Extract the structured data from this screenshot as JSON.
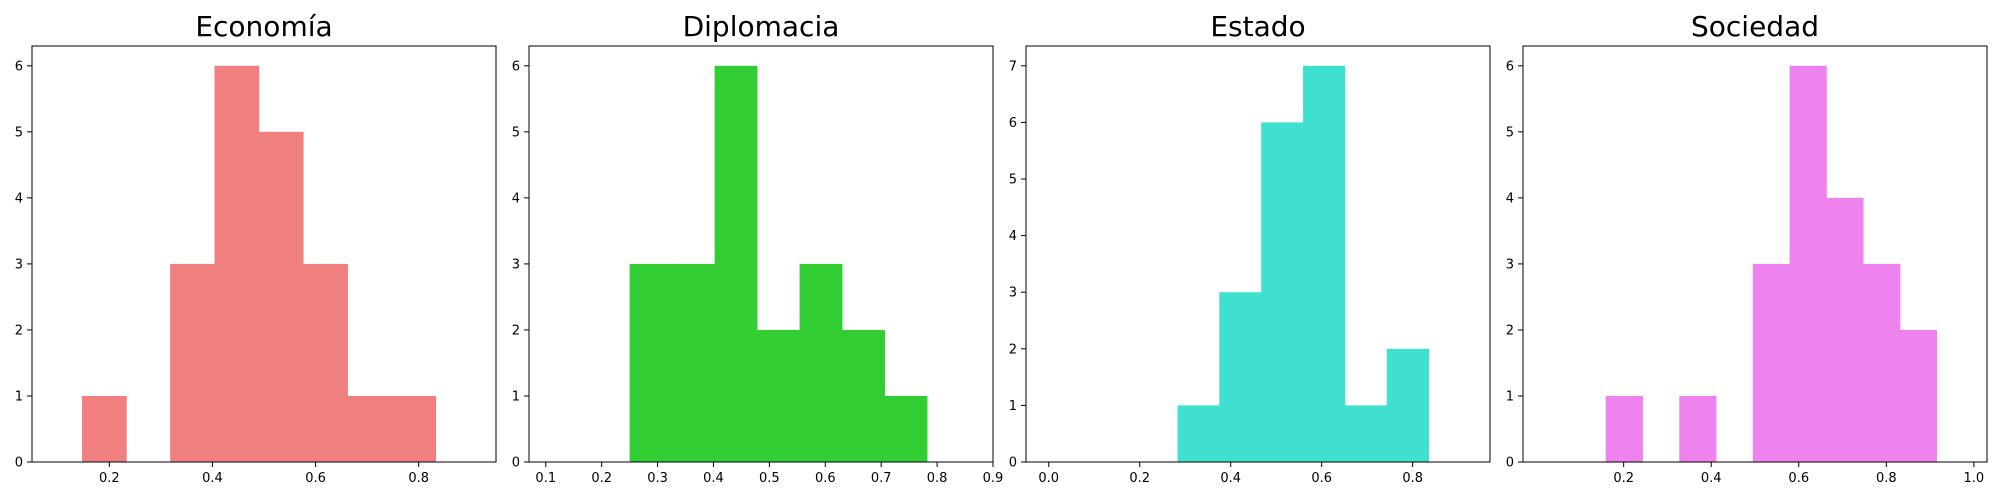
{
  "chart_data": [
    {
      "type": "histogram",
      "title": "Economía",
      "color": "#F08080",
      "bins": [
        {
          "x0": 0.147,
          "x1": 0.233,
          "count": 1
        },
        {
          "x0": 0.233,
          "x1": 0.318,
          "count": 0
        },
        {
          "x0": 0.318,
          "x1": 0.404,
          "count": 3
        },
        {
          "x0": 0.404,
          "x1": 0.49,
          "count": 6
        },
        {
          "x0": 0.49,
          "x1": 0.576,
          "count": 5
        },
        {
          "x0": 0.576,
          "x1": 0.662,
          "count": 3
        },
        {
          "x0": 0.662,
          "x1": 0.748,
          "count": 1
        },
        {
          "x0": 0.748,
          "x1": 0.833,
          "count": 1
        }
      ],
      "xlim": [
        0.05,
        0.95
      ],
      "ylim": [
        0,
        6.3
      ],
      "xticks": [
        0.2,
        0.4,
        0.6,
        0.8
      ],
      "xtick_labels": [
        "0.2",
        "0.4",
        "0.6",
        "0.8"
      ],
      "yticks": [
        0,
        1,
        2,
        3,
        4,
        5,
        6
      ],
      "ytick_labels": [
        "0",
        "1",
        "2",
        "3",
        "4",
        "5",
        "6"
      ]
    },
    {
      "type": "histogram",
      "title": "Diplomacia",
      "color": "#32CD32",
      "bins": [
        {
          "x0": 0.25,
          "x1": 0.326,
          "count": 3
        },
        {
          "x0": 0.326,
          "x1": 0.402,
          "count": 3
        },
        {
          "x0": 0.402,
          "x1": 0.478,
          "count": 6
        },
        {
          "x0": 0.478,
          "x1": 0.554,
          "count": 2
        },
        {
          "x0": 0.554,
          "x1": 0.63,
          "count": 3
        },
        {
          "x0": 0.63,
          "x1": 0.706,
          "count": 2
        },
        {
          "x0": 0.706,
          "x1": 0.782,
          "count": 1
        }
      ],
      "xlim": [
        0.07,
        0.9
      ],
      "ylim": [
        0,
        6.3
      ],
      "xticks": [
        0.1,
        0.2,
        0.3,
        0.4,
        0.5,
        0.6,
        0.7,
        0.8,
        0.9
      ],
      "xtick_labels": [
        "0.1",
        "0.2",
        "0.3",
        "0.4",
        "0.5",
        "0.6",
        "0.7",
        "0.8",
        "0.9"
      ],
      "yticks": [
        0,
        1,
        2,
        3,
        4,
        5,
        6
      ],
      "ytick_labels": [
        "0",
        "1",
        "2",
        "3",
        "4",
        "5",
        "6"
      ]
    },
    {
      "type": "histogram",
      "title": "Estado",
      "color": "#40E0D0",
      "bins": [
        {
          "x0": 0.283,
          "x1": 0.375,
          "count": 1
        },
        {
          "x0": 0.375,
          "x1": 0.467,
          "count": 3
        },
        {
          "x0": 0.467,
          "x1": 0.559,
          "count": 6
        },
        {
          "x0": 0.559,
          "x1": 0.651,
          "count": 7
        },
        {
          "x0": 0.651,
          "x1": 0.743,
          "count": 1
        },
        {
          "x0": 0.743,
          "x1": 0.835,
          "count": 2
        }
      ],
      "xlim": [
        -0.05,
        0.97
      ],
      "ylim": [
        0,
        7.35
      ],
      "xticks": [
        0.0,
        0.2,
        0.4,
        0.6,
        0.8
      ],
      "xtick_labels": [
        "0.0",
        "0.2",
        "0.4",
        "0.6",
        "0.8"
      ],
      "yticks": [
        0,
        1,
        2,
        3,
        4,
        5,
        6,
        7
      ],
      "ytick_labels": [
        "0",
        "1",
        "2",
        "3",
        "4",
        "5",
        "6",
        "7"
      ]
    },
    {
      "type": "histogram",
      "title": "Sociedad",
      "color": "#EE82EE",
      "bins": [
        {
          "x0": 0.159,
          "x1": 0.243,
          "count": 1
        },
        {
          "x0": 0.243,
          "x1": 0.327,
          "count": 0
        },
        {
          "x0": 0.327,
          "x1": 0.411,
          "count": 1
        },
        {
          "x0": 0.411,
          "x1": 0.495,
          "count": 0
        },
        {
          "x0": 0.495,
          "x1": 0.579,
          "count": 3
        },
        {
          "x0": 0.579,
          "x1": 0.663,
          "count": 6
        },
        {
          "x0": 0.663,
          "x1": 0.747,
          "count": 4
        },
        {
          "x0": 0.747,
          "x1": 0.831,
          "count": 3
        },
        {
          "x0": 0.831,
          "x1": 0.915,
          "count": 2
        }
      ],
      "xlim": [
        -0.03,
        1.03
      ],
      "ylim": [
        0,
        6.3
      ],
      "xticks": [
        0.2,
        0.4,
        0.6,
        0.8,
        1.0
      ],
      "xtick_labels": [
        "0.2",
        "0.4",
        "0.6",
        "0.8",
        "1.0"
      ],
      "yticks": [
        0,
        1,
        2,
        3,
        4,
        5,
        6
      ],
      "ytick_labels": [
        "0",
        "1",
        "2",
        "3",
        "4",
        "5",
        "6"
      ]
    }
  ]
}
